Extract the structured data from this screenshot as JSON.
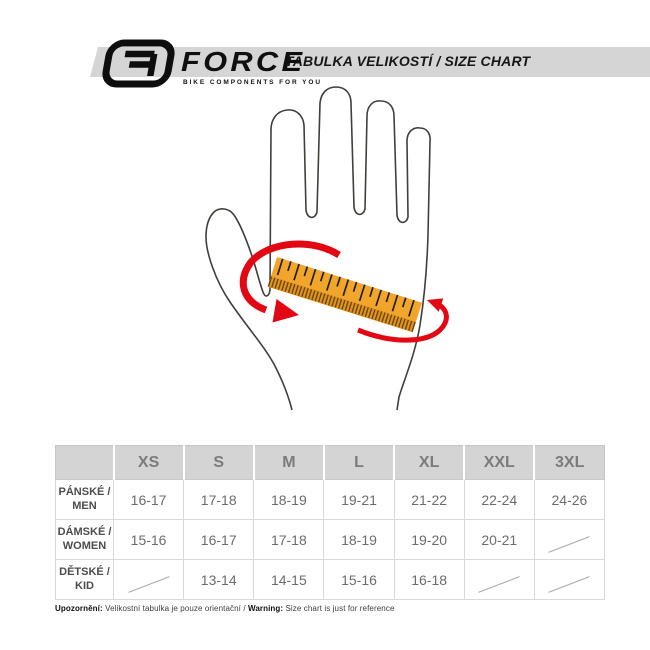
{
  "header": {
    "brand": "FORCE",
    "tagline": "BIKE COMPONENTS FOR YOU",
    "title": "TABULKA VELIKOSTÍ / SIZE CHART"
  },
  "illustration": {
    "description": "open hand with measuring tape across palm and red wrap-around arrows",
    "ruler_color": "#f2a52b",
    "ruler_band_color": "#e0951e",
    "ruler_hatch_color": "#6e4410",
    "arrow_color": "#e30613",
    "hand_outline_color": "#413f3a"
  },
  "size_table": {
    "columns": [
      "XS",
      "S",
      "M",
      "L",
      "XL",
      "XXL",
      "3XL"
    ],
    "rows": [
      {
        "label_line1": "PÁNSKÉ /",
        "label_line2": "MEN",
        "values": [
          "16-17",
          "17-18",
          "18-19",
          "19-21",
          "21-22",
          "22-24",
          "24-26"
        ]
      },
      {
        "label_line1": "DÁMSKÉ /",
        "label_line2": "WOMEN",
        "values": [
          "15-16",
          "16-17",
          "17-18",
          "18-19",
          "19-20",
          "20-21",
          null
        ]
      },
      {
        "label_line1": "DĚTSKÉ /",
        "label_line2": "KID",
        "values": [
          null,
          "13-14",
          "14-15",
          "15-16",
          "16-18",
          null,
          null
        ]
      }
    ]
  },
  "footer": {
    "notice_cz_label": "Upozornění:",
    "notice_cz_text": "Velikostní tabulka je pouze orientační",
    "separator": "/",
    "notice_en_label": "Warning:",
    "notice_en_text": "Size chart is just for reference"
  }
}
